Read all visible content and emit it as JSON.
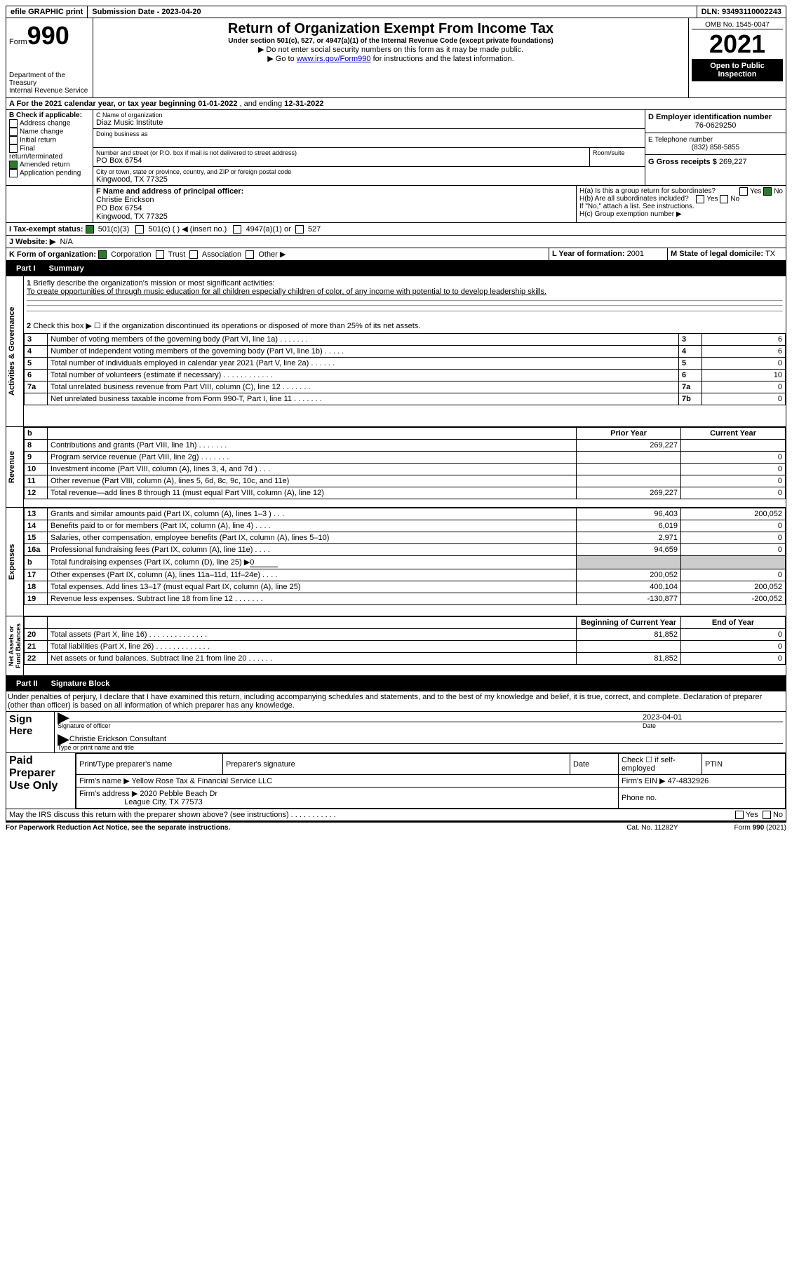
{
  "top": {
    "efile": "efile GRAPHIC print",
    "subdate_label": "Submission Date - ",
    "subdate": "2023-04-20",
    "dln_label": "DLN: ",
    "dln": "93493110002243"
  },
  "hdr": {
    "form": "Form",
    "num": "990",
    "dept": "Department of the Treasury\nInternal Revenue Service",
    "title": "Return of Organization Exempt From Income Tax",
    "sub": "Under section 501(c), 527, or 4947(a)(1) of the Internal Revenue Code (except private foundations)",
    "note1": "▶ Do not enter social security numbers on this form as it may be made public.",
    "note2": "▶ Go to ",
    "link": "www.irs.gov/Form990",
    "note2b": " for instructions and the latest information.",
    "omb": "OMB No. 1545-0047",
    "year": "2021",
    "open": "Open to Public Inspection"
  },
  "A": {
    "text": "A For the 2021 calendar year, or tax year beginning ",
    "beg": "01-01-2022",
    "mid": " , and ending ",
    "end": "12-31-2022"
  },
  "B": {
    "label": "B Check if applicable:",
    "addr": "Address change",
    "name": "Name change",
    "init": "Initial return",
    "final": "Final return/terminated",
    "amend": "Amended return",
    "app": "Application pending"
  },
  "C": {
    "clabel": "C Name of organization",
    "org": "Diaz Music Institute",
    "dba": "Doing business as",
    "street_label": "Number and street (or P.O. box if mail is not delivered to street address)",
    "street": "PO Box 6754",
    "room_label": "Room/suite",
    "city_label": "City or town, state or province, country, and ZIP or foreign postal code",
    "city": "Kingwood, TX  77325"
  },
  "D": {
    "label": "D Employer identification number",
    "ein": "76-0629250"
  },
  "E": {
    "label": "E Telephone number",
    "phone": "(832) 858-5855"
  },
  "G": {
    "label": "G Gross receipts $ ",
    "val": "269,227"
  },
  "F": {
    "label": "F Name and address of principal officer:",
    "name": "Christie Erickson",
    "l1": "PO Box 6754",
    "l2": "Kingwood, TX  77325"
  },
  "H": {
    "a": "H(a)  Is this a group return for subordinates?",
    "b": "H(b)  Are all subordinates included?",
    "bnote": "If \"No,\" attach a list. See instructions.",
    "c": "H(c)  Group exemption number ▶",
    "yes": "Yes",
    "no": "No"
  },
  "I": {
    "label": "I  Tax-exempt status:",
    "c3": "501(c)(3)",
    "c": "501(c) (  ) ◀ (insert no.)",
    "a1": "4947(a)(1) or",
    "s527": "527"
  },
  "J": {
    "label": "J  Website: ▶",
    "val": "N/A"
  },
  "K": {
    "label": "K Form of organization:",
    "corp": "Corporation",
    "trust": "Trust",
    "assoc": "Association",
    "other": "Other ▶"
  },
  "L": {
    "label": "L Year of formation: ",
    "val": "2001"
  },
  "M": {
    "label": "M State of legal domicile: ",
    "val": "TX"
  },
  "p1": {
    "label": "Part I",
    "title": "Summary",
    "side_ag": "Activities & Governance",
    "side_rev": "Revenue",
    "side_exp": "Expenses",
    "side_na": "Net Assets or Fund Balances"
  },
  "l1": {
    "num": "1",
    "text": "Briefly describe the organization's mission or most significant activities:",
    "mission": "To create opportunities of through music education for all children especially children of color, of any income with potential to to develop leadership skills."
  },
  "l2": {
    "num": "2",
    "text": "Check this box ▶ ☐ if the organization discontinued its operations or disposed of more than 25% of its net assets."
  },
  "lines": [
    {
      "n": "3",
      "t": "Number of voting members of the governing body (Part VI, line 1a)  .  .  .  .  .  .  .",
      "box": "3",
      "v": "6"
    },
    {
      "n": "4",
      "t": "Number of independent voting members of the governing body (Part VI, line 1b)  .  .  .  .  .",
      "box": "4",
      "v": "6"
    },
    {
      "n": "5",
      "t": "Total number of individuals employed in calendar year 2021 (Part V, line 2a)  .  .  .  .  .  .",
      "box": "5",
      "v": "0"
    },
    {
      "n": "6",
      "t": "Total number of volunteers (estimate if necessary)  .  .  .  .  .  .  .  .  .  .  .  .",
      "box": "6",
      "v": "10"
    },
    {
      "n": "7a",
      "t": "Total unrelated business revenue from Part VIII, column (C), line 12  .  .  .  .  .  .  .",
      "box": "7a",
      "v": "0"
    },
    {
      "n": "",
      "t": "Net unrelated business taxable income from Form 990-T, Part I, line 11  .  .  .  .  .  .  .",
      "box": "7b",
      "v": "0"
    }
  ],
  "cols": {
    "b": "b",
    "prior": "Prior Year",
    "curr": "Current Year",
    "bcy": "Beginning of Current Year",
    "eoy": "End of Year"
  },
  "rev": [
    {
      "n": "8",
      "t": "Contributions and grants (Part VIII, line 1h)  .  .  .  .  .  .  .",
      "p": "269,227",
      "c": ""
    },
    {
      "n": "9",
      "t": "Program service revenue (Part VIII, line 2g)  .  .  .  .  .  .  .",
      "p": "",
      "c": "0"
    },
    {
      "n": "10",
      "t": "Investment income (Part VIII, column (A), lines 3, 4, and 7d )  .  .  .",
      "p": "",
      "c": "0"
    },
    {
      "n": "11",
      "t": "Other revenue (Part VIII, column (A), lines 5, 6d, 8c, 9c, 10c, and 11e)",
      "p": "",
      "c": "0"
    },
    {
      "n": "12",
      "t": "Total revenue—add lines 8 through 11 (must equal Part VIII, column (A), line 12)",
      "p": "269,227",
      "c": "0"
    }
  ],
  "exp": [
    {
      "n": "13",
      "t": "Grants and similar amounts paid (Part IX, column (A), lines 1–3 )  .  .  .",
      "p": "96,403",
      "c": "200,052"
    },
    {
      "n": "14",
      "t": "Benefits paid to or for members (Part IX, column (A), line 4)  .  .  .  .",
      "p": "6,019",
      "c": "0"
    },
    {
      "n": "15",
      "t": "Salaries, other compensation, employee benefits (Part IX, column (A), lines 5–10)",
      "p": "2,971",
      "c": "0"
    },
    {
      "n": "16a",
      "t": "Professional fundraising fees (Part IX, column (A), line 11e)  .  .  .  .",
      "p": "94,659",
      "c": "0"
    }
  ],
  "l16b": {
    "n": "b",
    "t": "Total fundraising expenses (Part IX, column (D), line 25) ▶",
    "v": "0"
  },
  "exp2": [
    {
      "n": "17",
      "t": "Other expenses (Part IX, column (A), lines 11a–11d, 11f–24e)  .  .  .  .",
      "p": "200,052",
      "c": "0"
    },
    {
      "n": "18",
      "t": "Total expenses. Add lines 13–17 (must equal Part IX, column (A), line 25)",
      "p": "400,104",
      "c": "200,052"
    },
    {
      "n": "19",
      "t": "Revenue less expenses. Subtract line 18 from line 12  .  .  .  .  .  .  .",
      "p": "-130,877",
      "c": "-200,052"
    }
  ],
  "na": [
    {
      "n": "20",
      "t": "Total assets (Part X, line 16)  .  .  .  .  .  .  .  .  .  .  .  .  .  .",
      "p": "81,852",
      "c": "0"
    },
    {
      "n": "21",
      "t": "Total liabilities (Part X, line 26)  .  .  .  .  .  .  .  .  .  .  .  .  .",
      "p": "",
      "c": "0"
    },
    {
      "n": "22",
      "t": "Net assets or fund balances. Subtract line 21 from line 20  .  .  .  .  .  .",
      "p": "81,852",
      "c": "0"
    }
  ],
  "p2": {
    "label": "Part II",
    "title": "Signature Block",
    "decl": "Under penalties of perjury, I declare that I have examined this return, including accompanying schedules and statements, and to the best of my knowledge and belief, it is true, correct, and complete. Declaration of preparer (other than officer) is based on all information of which preparer has any knowledge."
  },
  "sign": {
    "here": "Sign Here",
    "sig": "Signature of officer",
    "date": "Date",
    "dateval": "2023-04-01",
    "name": "Christie Erickson  Consultant",
    "type": "Type or print name and title"
  },
  "paid": {
    "label": "Paid Preparer Use Only",
    "pname": "Print/Type preparer's name",
    "psig": "Preparer's signature",
    "pdate": "Date",
    "check": "Check ☐ if self-employed",
    "ptin": "PTIN",
    "fname_l": "Firm's name      ▶ ",
    "fname": "Yellow Rose Tax & Financial Service LLC",
    "fein_l": "Firm's EIN ▶ ",
    "fein": "47-4832926",
    "faddr_l": "Firm's address ▶ ",
    "faddr1": "2020 Pebble Beach Dr",
    "faddr2": "League City, TX  77573",
    "phone": "Phone no."
  },
  "foot": {
    "q": "May the IRS discuss this return with the preparer shown above? (see instructions)  .  .  .  .  .  .  .  .  .  .  .",
    "yes": "Yes",
    "no": "No",
    "pra": "For Paperwork Reduction Act Notice, see the separate instructions.",
    "cat": "Cat. No. 11282Y",
    "form": "Form ",
    "fnum": "990",
    "fy": " (2021)"
  }
}
